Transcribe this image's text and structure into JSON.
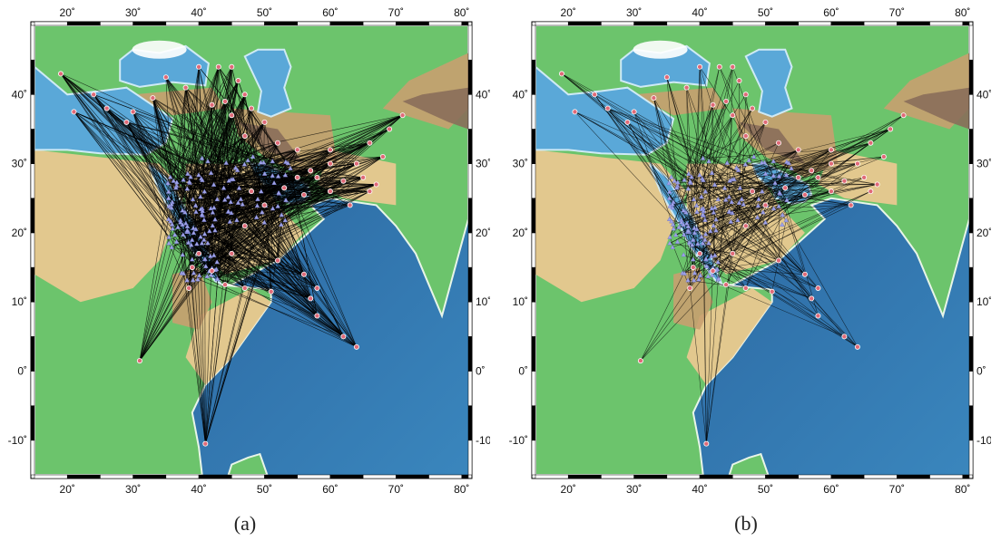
{
  "panels": [
    {
      "id": "a",
      "caption": "(a)",
      "connection_density": "dense"
    },
    {
      "id": "b",
      "caption": "(b)",
      "connection_density": "sparse"
    }
  ],
  "map": {
    "lon_range": [
      15,
      81
    ],
    "lat_range": [
      -15,
      50
    ],
    "lon_ticks": [
      20,
      30,
      40,
      50,
      60,
      70,
      80
    ],
    "lat_ticks": [
      40,
      30,
      20,
      10,
      0,
      -10
    ],
    "lon_tick_labels": [
      "20˚",
      "30˚",
      "40˚",
      "50˚",
      "60˚",
      "70˚",
      "80˚"
    ],
    "lat_tick_labels": [
      "40˚",
      "30˚",
      "20˚",
      "10˚",
      "0˚",
      "-10˚"
    ],
    "colors": {
      "ocean_deep": "#2f6fa8",
      "ocean_shallow": "#7fc1e6",
      "lowland": "#6cc46c",
      "desert": "#e9c890",
      "highland": "#c9a070",
      "mountain": "#8a6e5a",
      "station": "#e06a78",
      "event": "#9fa3e8",
      "path": "#000000"
    }
  }
}
